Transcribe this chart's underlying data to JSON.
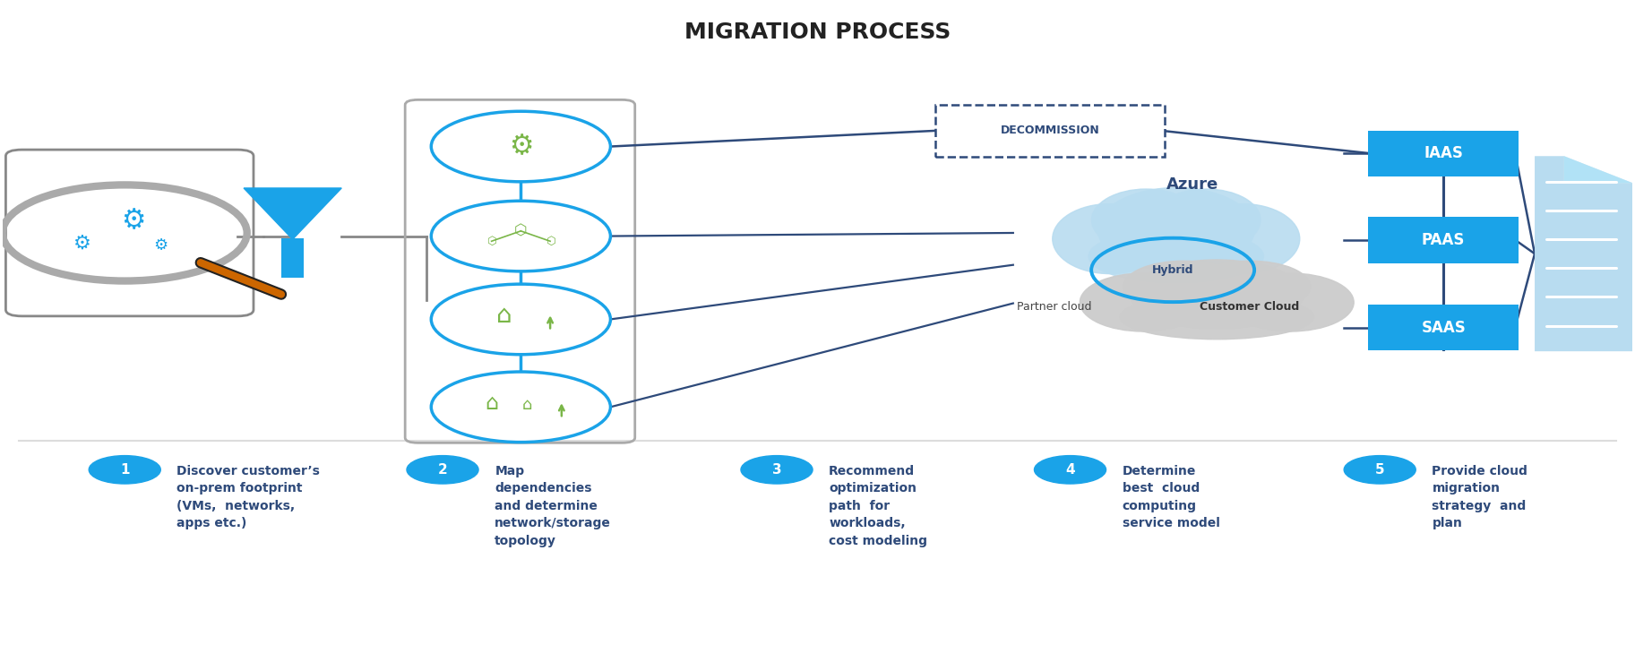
{
  "title": "MIGRATION PROCESS",
  "title_fontsize": 18,
  "title_color": "#222222",
  "bg_color": "#ffffff",
  "blue_color": "#1aa3e8",
  "dark_blue": "#2e4a7a",
  "green_color": "#7ab648",
  "gray_color": "#b0b0b0",
  "light_blue_cloud": "#b8dcf0",
  "step_labels": [
    "Discover customer’s\non-prem footprint\n(VMs,  networks,\napps etc.)",
    "Map\ndependencies\nand determine\nnetwork/storage\ntopology",
    "Recommend\noptimization\npath  for\nworkloads,\ncost modeling",
    "Determine\nbest  cloud\ncomputing\nservice model",
    "Provide cloud\nmigration\nstrategy  and\nplan"
  ],
  "step_numbers": [
    "1",
    "2",
    "3",
    "4",
    "5"
  ],
  "circle_labels": [
    "IAAS",
    "PAAS",
    "SAAS"
  ],
  "decommission_text": "DECOMMISSION",
  "azure_text": "Azure",
  "hybrid_text": "Hybrid",
  "partner_cloud_text": "Partner cloud",
  "customer_cloud_text": "Customer Cloud"
}
